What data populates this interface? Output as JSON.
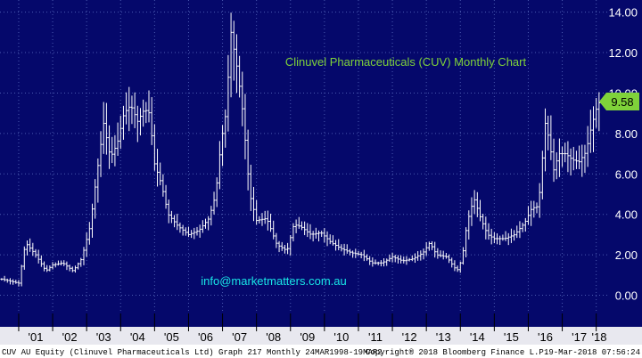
{
  "chart_data": {
    "type": "bar",
    "style": "OHLC bars (monthly)",
    "title": "Clinuvel Pharmaceuticals (CUV) Monthly Chart",
    "watermark": "info@marketmatters.com.au",
    "last_price_label": "9.58",
    "ylim": [
      -0.9,
      14.6
    ],
    "yticks": [
      0,
      2,
      4,
      6,
      8,
      10,
      12,
      14
    ],
    "ytick_labels": [
      "0.00",
      "2.00",
      "4.00",
      "6.00",
      "8.00",
      "10.00",
      "12.00",
      "14.00"
    ],
    "xtick_labels": [
      "'01",
      "'02",
      "'03",
      "'04",
      "'05",
      "'06",
      "'07",
      "'08",
      "'09",
      "'10",
      "'11",
      "'12",
      "'13",
      "'14",
      "'15",
      "'16",
      "'17",
      "'18"
    ],
    "xlim": [
      2000.45,
      2018.35
    ],
    "grid": true,
    "colors": {
      "background": "#05086b",
      "bars": "#ffffff",
      "grid": "#4a5ab0",
      "title": "#7fd23a",
      "watermark": "#18e6e6",
      "price_tag": "#7fd23a"
    },
    "series": [
      {
        "x": [
          2000.5,
          2001.0,
          2001.2,
          2001.5,
          2001.8,
          2002.0,
          2002.3,
          2002.6,
          2002.85,
          2003.1,
          2003.3,
          2003.5,
          2003.7,
          2003.9,
          2004.1,
          2004.3,
          2004.5,
          2004.7,
          2004.85,
          2005.0,
          2005.2,
          2005.4,
          2005.7,
          2006.0,
          2006.3,
          2006.6,
          2006.8,
          2006.95,
          2007.1,
          2007.25,
          2007.45,
          2007.6,
          2007.8,
          2008.0,
          2008.3,
          2008.6,
          2008.9,
          2009.1,
          2009.3,
          2009.6,
          2009.9,
          2010.2,
          2010.5,
          2010.8,
          2011.1,
          2011.4,
          2011.7,
          2012.0,
          2012.3,
          2012.6,
          2012.9,
          2013.1,
          2013.3,
          2013.6,
          2013.9,
          2014.05,
          2014.2,
          2014.4,
          2014.6,
          2014.8,
          2015.0,
          2015.3,
          2015.6,
          2015.9,
          2016.1,
          2016.3,
          2016.5,
          2016.6,
          2016.75,
          2016.9,
          2017.1,
          2017.3,
          2017.5,
          2017.7,
          2017.85,
          2018.0,
          2018.1
        ],
        "values": [
          0.8,
          0.6,
          2.6,
          2.0,
          1.2,
          1.5,
          1.6,
          1.2,
          1.8,
          3.4,
          6.0,
          8.5,
          6.8,
          7.5,
          9.0,
          9.4,
          8.6,
          9.2,
          9.0,
          6.5,
          5.5,
          4.0,
          3.4,
          3.0,
          3.2,
          3.8,
          5.0,
          7.5,
          9.0,
          13.0,
          11.0,
          9.0,
          5.0,
          3.7,
          3.8,
          2.5,
          2.2,
          3.5,
          3.4,
          3.0,
          3.1,
          2.6,
          2.3,
          2.1,
          2.0,
          1.6,
          1.6,
          1.9,
          1.7,
          1.8,
          2.1,
          2.6,
          2.0,
          1.9,
          1.2,
          1.8,
          3.6,
          4.8,
          3.8,
          3.0,
          2.8,
          2.8,
          3.0,
          3.6,
          4.3,
          4.4,
          8.5,
          7.8,
          6.2,
          7.0,
          7.0,
          6.7,
          6.6,
          7.1,
          8.3,
          9.2,
          9.58
        ]
      }
    ]
  },
  "footer": {
    "left": "CUV AU Equity (Clinuvel Pharmaceuticals Ltd) Graph 217  Monthly 24MAR1998-19MAR2",
    "center": "Copyright® 2018 Bloomberg Finance L.P.",
    "right": "19-Mar-2018 07:56:24"
  }
}
